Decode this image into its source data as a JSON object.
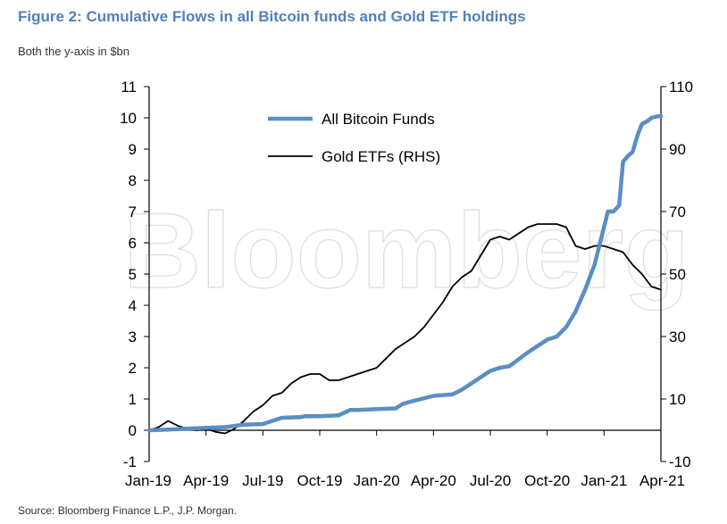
{
  "figure": {
    "title": "Figure 2: Cumulative Flows in all Bitcoin funds and Gold ETF holdings",
    "subtitle": "Both the y-axis in $bn",
    "source": "Source: Bloomberg Finance L.P., J.P. Morgan.",
    "watermark": "Bloomberg"
  },
  "chart_data": {
    "type": "line",
    "title": "Cumulative Flows in all Bitcoin funds and Gold ETF holdings",
    "xlabel": "",
    "ylabel": "$bn",
    "x_ticks": [
      "Jan-19",
      "Apr-19",
      "Jul-19",
      "Oct-19",
      "Jan-20",
      "Apr-20",
      "Jul-20",
      "Oct-20",
      "Jan-21",
      "Apr-21"
    ],
    "x_range": [
      0,
      27
    ],
    "y_left": {
      "ticks": [
        -1,
        0,
        1,
        2,
        3,
        4,
        5,
        6,
        7,
        8,
        9,
        10,
        11
      ],
      "ylim": [
        -1,
        11
      ]
    },
    "y_right": {
      "ticks": [
        -10,
        10,
        30,
        50,
        70,
        90,
        110
      ],
      "ylim": [
        -10,
        110
      ]
    },
    "legend_placement": "top-center",
    "series": [
      {
        "name": "All Bitcoin Funds",
        "axis": "left",
        "color": "#5b8ec2",
        "x": [
          0,
          1,
          2,
          3,
          4,
          4.6,
          5,
          6,
          7,
          8,
          8.2,
          9,
          10,
          10.6,
          11,
          12,
          13,
          13.4,
          14,
          15,
          16,
          16.5,
          17,
          18,
          18.5,
          19,
          20,
          21,
          21.5,
          22,
          22.5,
          23,
          23.5,
          24,
          24.2,
          24.5,
          24.8,
          25,
          25.3,
          25.5,
          25.8,
          26,
          26.3,
          26.5,
          26.8,
          27
        ],
        "values": [
          0,
          0.02,
          0.05,
          0.08,
          0.1,
          0.15,
          0.18,
          0.2,
          0.4,
          0.42,
          0.45,
          0.45,
          0.48,
          0.65,
          0.65,
          0.68,
          0.7,
          0.85,
          0.95,
          1.1,
          1.15,
          1.3,
          1.5,
          1.9,
          2.0,
          2.05,
          2.5,
          2.9,
          3.0,
          3.3,
          3.8,
          4.5,
          5.3,
          6.5,
          7.0,
          7.0,
          7.2,
          8.6,
          8.8,
          8.9,
          9.5,
          9.8,
          9.9,
          10.0,
          10.05,
          10.05
        ]
      },
      {
        "name": "Gold ETFs (RHS)",
        "axis": "right",
        "color": "#000000",
        "x": [
          0,
          0.5,
          1,
          1.5,
          2,
          2.5,
          3,
          3.5,
          4,
          4.5,
          5,
          5.5,
          6,
          6.5,
          7,
          7.5,
          8,
          8.5,
          9,
          9.5,
          10,
          10.5,
          11,
          11.5,
          12,
          12.5,
          13,
          13.5,
          14,
          14.5,
          15,
          15.5,
          16,
          16.5,
          17,
          17.5,
          18,
          18.5,
          19,
          19.5,
          20,
          20.5,
          21,
          21.5,
          22,
          22.5,
          23,
          23.5,
          24,
          24.5,
          25,
          25.5,
          26,
          26.5,
          27
        ],
        "values": [
          0,
          1,
          3,
          1.5,
          0.5,
          0,
          0.5,
          -0.5,
          -1,
          0.5,
          3,
          6,
          8,
          11,
          12,
          15,
          17,
          18,
          18,
          16,
          16,
          17,
          18,
          19,
          20,
          23,
          26,
          28,
          30,
          33,
          37,
          41,
          46,
          49,
          51,
          56,
          61,
          62,
          61,
          63,
          65,
          66,
          66,
          66,
          65,
          59,
          58,
          59,
          59,
          58,
          57,
          53,
          50,
          46,
          45
        ]
      }
    ]
  }
}
